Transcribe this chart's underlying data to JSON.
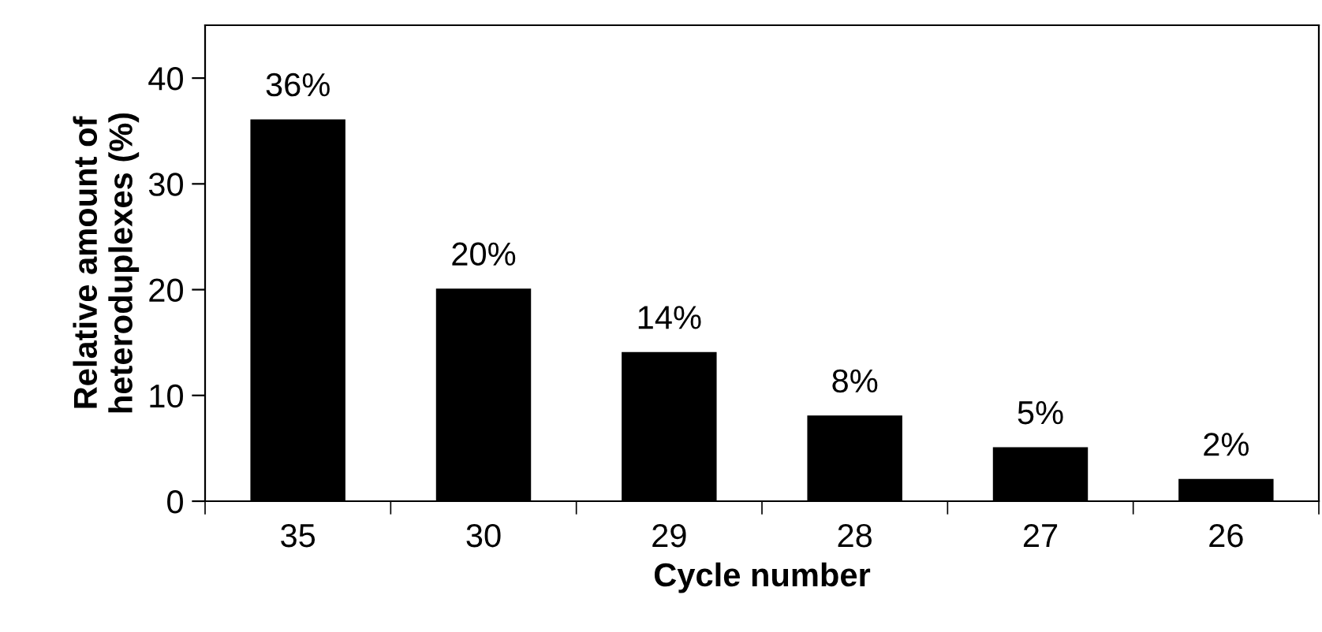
{
  "chart_data": {
    "type": "bar",
    "xlabel": "Cycle number",
    "ylabel": "Relative amount of\nheteroduplexes (%)",
    "categories": [
      "35",
      "30",
      "29",
      "28",
      "27",
      "26"
    ],
    "values": [
      36,
      20,
      14,
      8,
      5,
      2
    ],
    "value_labels": [
      "36%",
      "20%",
      "14%",
      "8%",
      "5%",
      "2%"
    ],
    "color": "#000000",
    "ylim": [
      0,
      45
    ],
    "yticks": [
      0,
      10,
      20,
      30,
      40
    ],
    "grid": false,
    "legend": false
  }
}
